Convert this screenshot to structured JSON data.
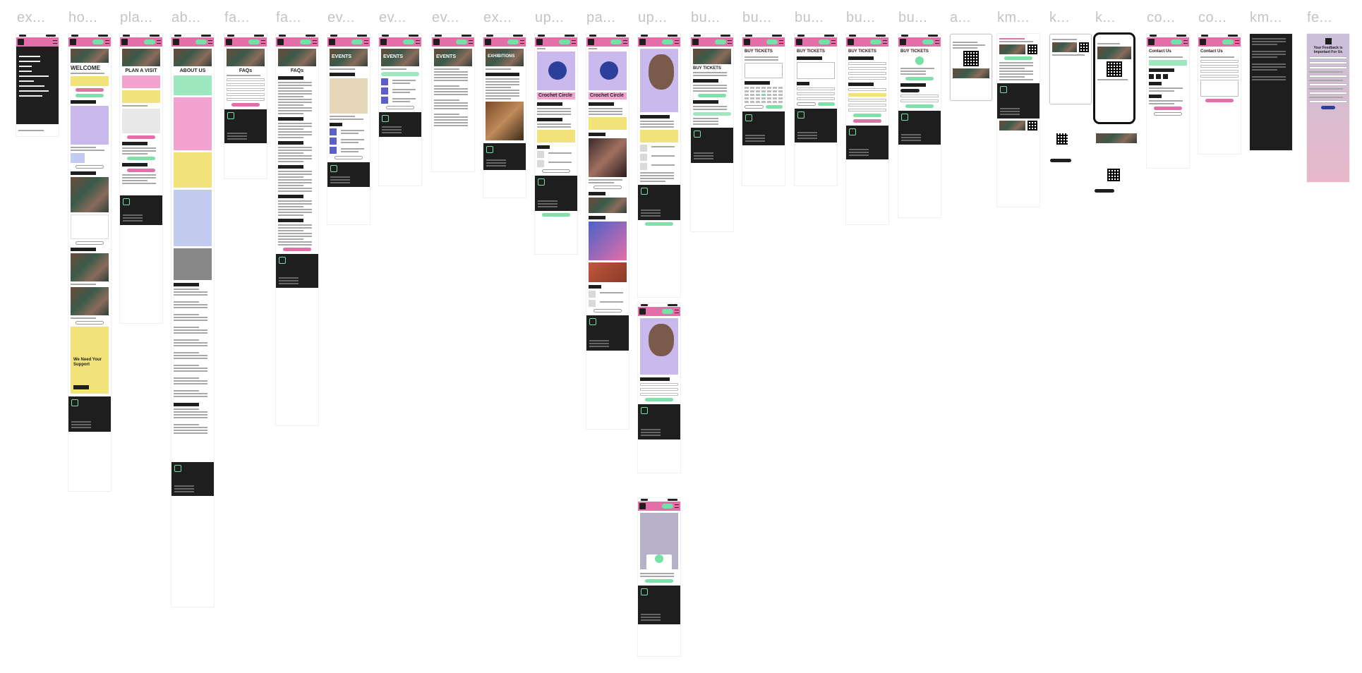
{
  "frames": [
    {
      "id": "f1",
      "label": "ex..."
    },
    {
      "id": "f2",
      "label": "ho..."
    },
    {
      "id": "f3",
      "label": "pla..."
    },
    {
      "id": "f4",
      "label": "ab..."
    },
    {
      "id": "f5",
      "label": "fa..."
    },
    {
      "id": "f6",
      "label": "fa..."
    },
    {
      "id": "f7",
      "label": "ev..."
    },
    {
      "id": "f8",
      "label": "ev..."
    },
    {
      "id": "f9",
      "label": "ev..."
    },
    {
      "id": "f10",
      "label": "ex..."
    },
    {
      "id": "f11",
      "label": "up..."
    },
    {
      "id": "f12",
      "label": "pa..."
    },
    {
      "id": "f13",
      "label": "up..."
    },
    {
      "id": "f14",
      "label": "bu..."
    },
    {
      "id": "f15",
      "label": "bu..."
    },
    {
      "id": "f16",
      "label": "bu..."
    },
    {
      "id": "f17",
      "label": "bu..."
    },
    {
      "id": "f18",
      "label": "bu..."
    },
    {
      "id": "f19",
      "label": "a..."
    },
    {
      "id": "f20",
      "label": "km..."
    },
    {
      "id": "f21",
      "label": "k..."
    },
    {
      "id": "f22",
      "label": "k..."
    },
    {
      "id": "f23",
      "label": "co..."
    },
    {
      "id": "f24",
      "label": "co..."
    },
    {
      "id": "f25",
      "label": "km..."
    },
    {
      "id": "f26",
      "label": "fe..."
    }
  ],
  "screens": {
    "home_title": "WELCOME",
    "plan_title": "PLAN A VISIT",
    "about_title": "ABOUT US",
    "faqs_title": "FAQs",
    "events_title": "EVENTS",
    "exhibitions_title": "EXHIBITIONS",
    "crochet_title": "Crochet Circle",
    "buy_tickets_title": "BUY TICKETS",
    "contact_title": "Contact Us",
    "support_title": "We Need Your Support",
    "feedback_title": "Your Feedback is Important For Us"
  }
}
